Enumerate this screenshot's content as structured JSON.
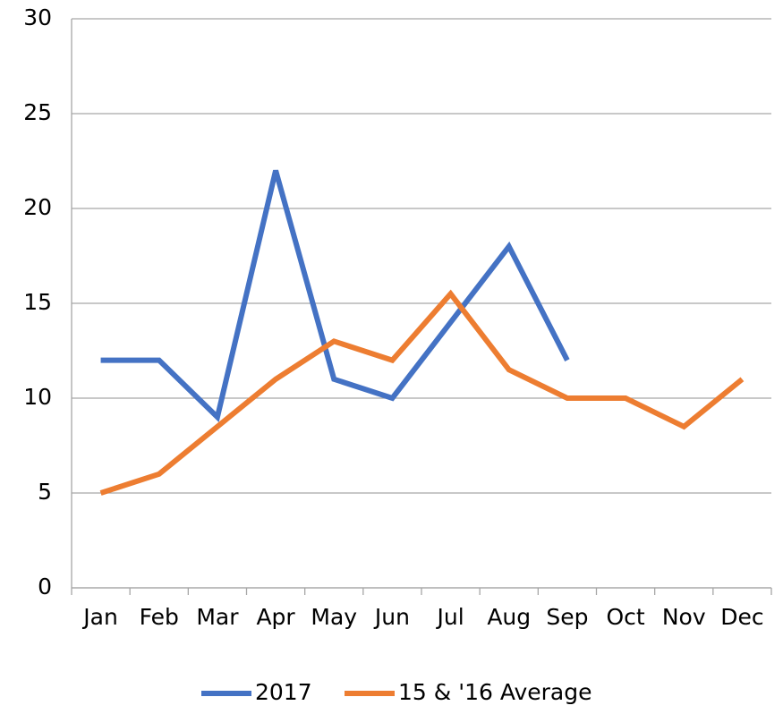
{
  "chart_data": {
    "type": "line",
    "categories": [
      "Jan",
      "Feb",
      "Mar",
      "Apr",
      "May",
      "Jun",
      "Jul",
      "Aug",
      "Sep",
      "Oct",
      "Nov",
      "Dec"
    ],
    "series": [
      {
        "name": "2017",
        "color": "#4472c4",
        "values": [
          12,
          12,
          9,
          22,
          11,
          10,
          14,
          18,
          12,
          null,
          null,
          null
        ]
      },
      {
        "name": "15 & '16 Average",
        "color": "#ed7d31",
        "values": [
          5,
          6,
          8.5,
          11,
          13,
          12,
          15.5,
          11.5,
          10,
          10,
          8.5,
          11
        ]
      }
    ],
    "ylim": [
      0,
      30
    ],
    "yticks": [
      0,
      5,
      10,
      15,
      20,
      25,
      30
    ],
    "grid": true,
    "legend": "bottom"
  }
}
